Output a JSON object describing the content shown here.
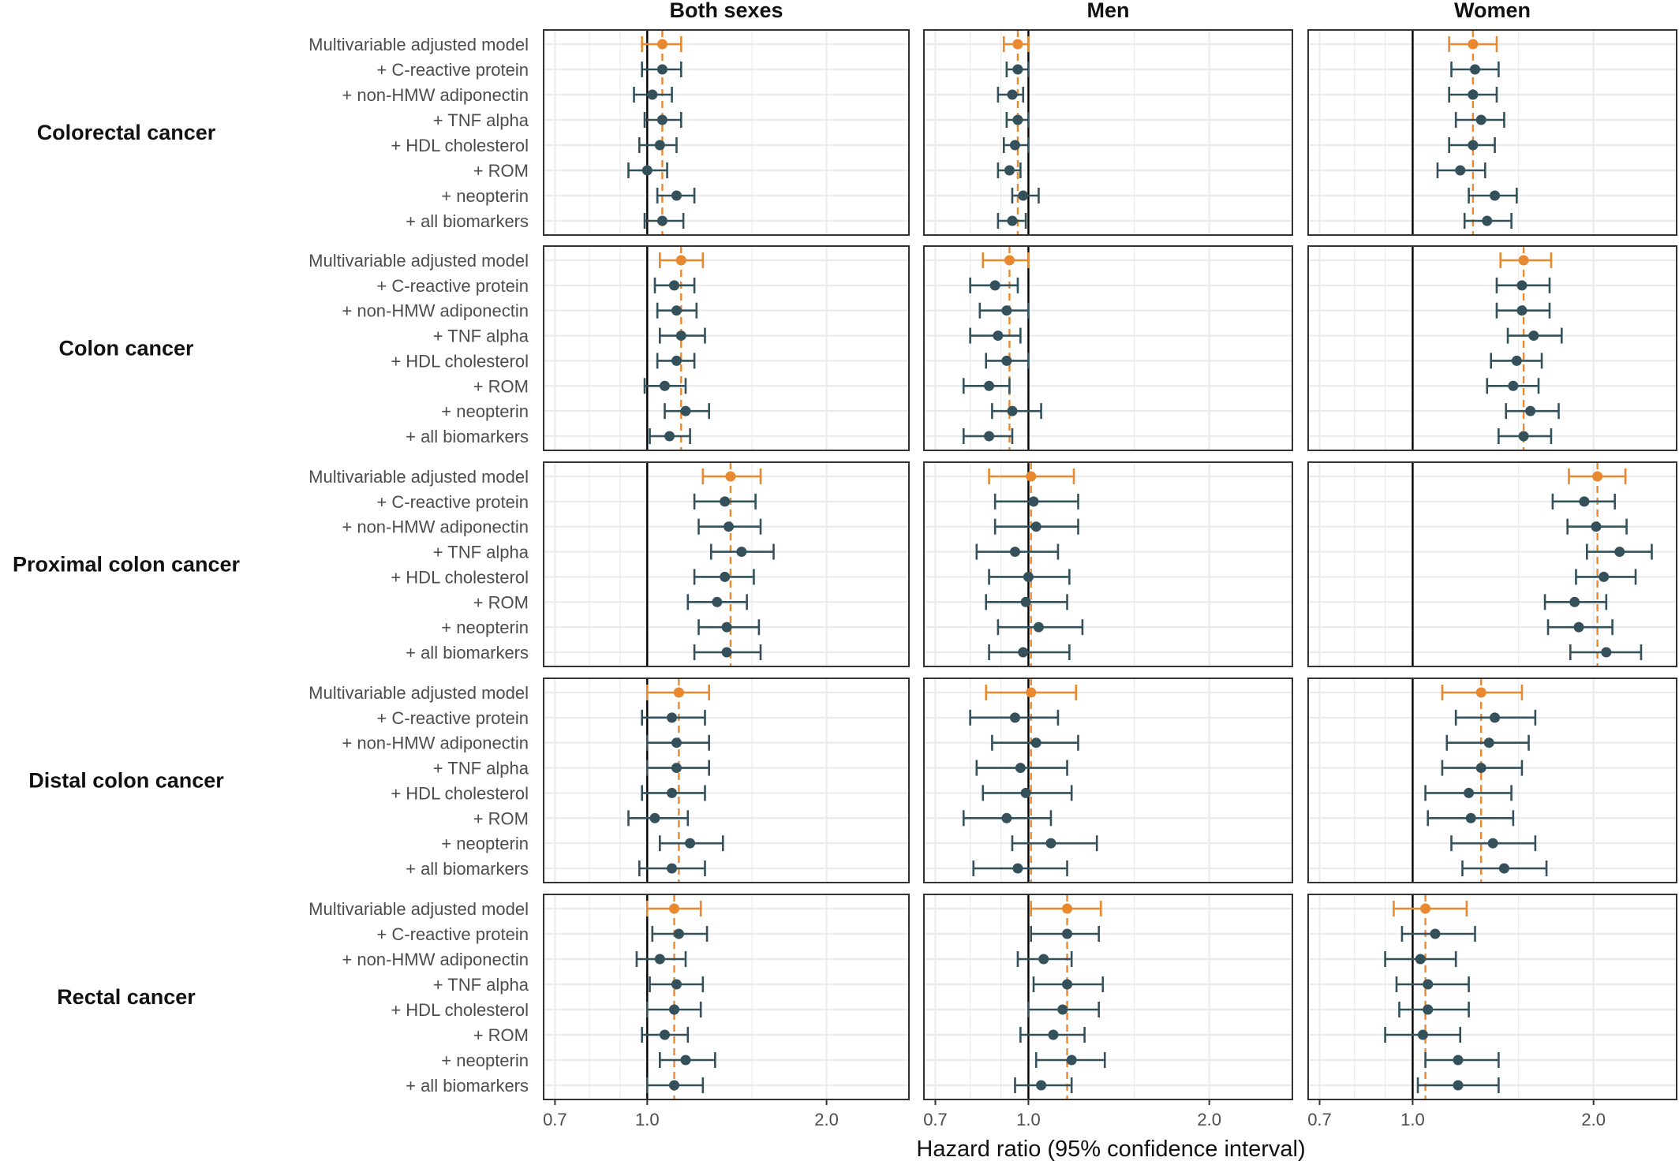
{
  "chart_data": {
    "type": "forest",
    "title": "",
    "xlabel": "Hazard ratio (95% confidence interval)",
    "ylabel": "",
    "x_scale": "log",
    "xlim": [
      0.67,
      2.75
    ],
    "x_ticks": [
      0.7,
      1.0,
      2.0
    ],
    "x_tick_labels": [
      "0.7",
      "1.0",
      "2.0"
    ],
    "reference_line": 1.0,
    "columns": [
      "Both sexes",
      "Men",
      "Women"
    ],
    "rows": [
      "Colorectal cancer",
      "Colon cancer",
      "Proximal colon cancer",
      "Distal colon cancer",
      "Rectal cancer"
    ],
    "models": [
      "Multivariable adjusted model",
      "+ C-reactive protein",
      "+ non-HMW adiponectin",
      "+ TNF alpha",
      "+ HDL cholesterol",
      "+ ROM",
      "+ neopterin",
      "+ all biomarkers"
    ],
    "colors": {
      "base_model": "#e8882f",
      "biomarker_model": "#34505a",
      "reference": "#000000",
      "grid": "#ebebeb",
      "panel_border": "#333333"
    },
    "panels": [
      [
        {
          "estimates": [
            [
              1.06,
              0.98,
              1.14
            ],
            [
              1.06,
              0.98,
              1.14
            ],
            [
              1.02,
              0.95,
              1.1
            ],
            [
              1.06,
              0.99,
              1.14
            ],
            [
              1.05,
              0.97,
              1.12
            ],
            [
              1.0,
              0.93,
              1.08
            ],
            [
              1.12,
              1.04,
              1.2
            ],
            [
              1.06,
              0.99,
              1.15
            ]
          ]
        },
        {
          "estimates": [
            [
              1.14,
              1.05,
              1.24
            ],
            [
              1.11,
              1.03,
              1.2
            ],
            [
              1.12,
              1.04,
              1.21
            ],
            [
              1.14,
              1.05,
              1.25
            ],
            [
              1.12,
              1.04,
              1.2
            ],
            [
              1.07,
              0.99,
              1.16
            ],
            [
              1.16,
              1.07,
              1.27
            ],
            [
              1.09,
              1.01,
              1.18
            ]
          ]
        },
        {
          "estimates": [
            [
              1.38,
              1.24,
              1.55
            ],
            [
              1.35,
              1.2,
              1.52
            ],
            [
              1.37,
              1.22,
              1.55
            ],
            [
              1.44,
              1.28,
              1.63
            ],
            [
              1.35,
              1.2,
              1.51
            ],
            [
              1.31,
              1.17,
              1.47
            ],
            [
              1.36,
              1.22,
              1.54
            ],
            [
              1.36,
              1.2,
              1.55
            ]
          ]
        },
        {
          "estimates": [
            [
              1.13,
              1.0,
              1.27
            ],
            [
              1.1,
              0.98,
              1.25
            ],
            [
              1.12,
              1.0,
              1.27
            ],
            [
              1.12,
              1.0,
              1.27
            ],
            [
              1.1,
              0.98,
              1.25
            ],
            [
              1.03,
              0.93,
              1.17
            ],
            [
              1.18,
              1.05,
              1.34
            ],
            [
              1.1,
              0.97,
              1.25
            ]
          ]
        },
        {
          "estimates": [
            [
              1.11,
              1.0,
              1.23
            ],
            [
              1.13,
              1.02,
              1.26
            ],
            [
              1.05,
              0.96,
              1.16
            ],
            [
              1.12,
              1.01,
              1.24
            ],
            [
              1.11,
              1.0,
              1.23
            ],
            [
              1.07,
              0.98,
              1.17
            ],
            [
              1.16,
              1.05,
              1.3
            ],
            [
              1.11,
              1.0,
              1.24
            ]
          ]
        }
      ],
      [
        {
          "estimates": [
            [
              0.96,
              0.91,
              1.0
            ],
            [
              0.96,
              0.92,
              1.0
            ],
            [
              0.94,
              0.89,
              0.98
            ],
            [
              0.96,
              0.92,
              1.0
            ],
            [
              0.95,
              0.91,
              1.0
            ],
            [
              0.93,
              0.89,
              0.97
            ],
            [
              0.98,
              0.94,
              1.04
            ],
            [
              0.94,
              0.89,
              0.99
            ]
          ]
        },
        {
          "estimates": [
            [
              0.93,
              0.84,
              1.0
            ],
            [
              0.88,
              0.8,
              0.96
            ],
            [
              0.92,
              0.83,
              1.0
            ],
            [
              0.89,
              0.8,
              0.97
            ],
            [
              0.92,
              0.85,
              1.0
            ],
            [
              0.86,
              0.78,
              0.93
            ],
            [
              0.94,
              0.87,
              1.05
            ],
            [
              0.86,
              0.78,
              0.94
            ]
          ]
        },
        {
          "estimates": [
            [
              1.01,
              0.86,
              1.19
            ],
            [
              1.02,
              0.88,
              1.21
            ],
            [
              1.03,
              0.88,
              1.21
            ],
            [
              0.95,
              0.82,
              1.12
            ],
            [
              1.0,
              0.86,
              1.17
            ],
            [
              0.99,
              0.85,
              1.16
            ],
            [
              1.04,
              0.89,
              1.23
            ],
            [
              0.98,
              0.86,
              1.17
            ]
          ]
        },
        {
          "estimates": [
            [
              1.01,
              0.85,
              1.2
            ],
            [
              0.95,
              0.8,
              1.12
            ],
            [
              1.03,
              0.87,
              1.21
            ],
            [
              0.97,
              0.82,
              1.16
            ],
            [
              0.99,
              0.84,
              1.18
            ],
            [
              0.92,
              0.78,
              1.09
            ],
            [
              1.09,
              0.94,
              1.3
            ],
            [
              0.96,
              0.81,
              1.16
            ]
          ]
        },
        {
          "estimates": [
            [
              1.16,
              1.01,
              1.32
            ],
            [
              1.16,
              1.01,
              1.31
            ],
            [
              1.06,
              0.96,
              1.18
            ],
            [
              1.16,
              1.02,
              1.33
            ],
            [
              1.14,
              1.0,
              1.31
            ],
            [
              1.1,
              0.97,
              1.24
            ],
            [
              1.18,
              1.03,
              1.34
            ],
            [
              1.05,
              0.95,
              1.18
            ]
          ]
        }
      ],
      [
        {
          "estimates": [
            [
              1.26,
              1.15,
              1.38
            ],
            [
              1.27,
              1.16,
              1.39
            ],
            [
              1.26,
              1.15,
              1.38
            ],
            [
              1.3,
              1.18,
              1.42
            ],
            [
              1.26,
              1.15,
              1.37
            ],
            [
              1.2,
              1.1,
              1.32
            ],
            [
              1.37,
              1.24,
              1.49
            ],
            [
              1.33,
              1.22,
              1.46
            ]
          ]
        },
        {
          "estimates": [
            [
              1.53,
              1.4,
              1.7
            ],
            [
              1.52,
              1.38,
              1.69
            ],
            [
              1.52,
              1.38,
              1.69
            ],
            [
              1.59,
              1.44,
              1.77
            ],
            [
              1.49,
              1.35,
              1.64
            ],
            [
              1.47,
              1.33,
              1.62
            ],
            [
              1.57,
              1.43,
              1.75
            ],
            [
              1.53,
              1.39,
              1.7
            ]
          ]
        },
        {
          "estimates": [
            [
              2.03,
              1.82,
              2.26
            ],
            [
              1.93,
              1.71,
              2.17
            ],
            [
              2.02,
              1.81,
              2.27
            ],
            [
              2.21,
              1.95,
              2.5
            ],
            [
              2.08,
              1.87,
              2.35
            ],
            [
              1.86,
              1.66,
              2.1
            ],
            [
              1.89,
              1.68,
              2.15
            ],
            [
              2.1,
              1.83,
              2.4
            ]
          ]
        },
        {
          "estimates": [
            [
              1.3,
              1.12,
              1.52
            ],
            [
              1.37,
              1.18,
              1.6
            ],
            [
              1.34,
              1.14,
              1.56
            ],
            [
              1.3,
              1.12,
              1.52
            ],
            [
              1.24,
              1.05,
              1.46
            ],
            [
              1.25,
              1.06,
              1.47
            ],
            [
              1.36,
              1.16,
              1.6
            ],
            [
              1.42,
              1.21,
              1.67
            ]
          ]
        },
        {
          "estimates": [
            [
              1.05,
              0.93,
              1.23
            ],
            [
              1.09,
              0.96,
              1.27
            ],
            [
              1.03,
              0.9,
              1.18
            ],
            [
              1.06,
              0.94,
              1.24
            ],
            [
              1.06,
              0.95,
              1.24
            ],
            [
              1.04,
              0.9,
              1.2
            ],
            [
              1.19,
              1.05,
              1.39
            ],
            [
              1.19,
              1.02,
              1.39
            ]
          ]
        }
      ]
    ],
    "dashed_lines": [
      [
        1.06,
        1.14,
        1.38,
        1.13,
        1.11
      ],
      [
        0.96,
        0.93,
        1.01,
        1.01,
        1.16
      ],
      [
        1.26,
        1.53,
        2.03,
        1.3,
        1.05
      ]
    ]
  }
}
